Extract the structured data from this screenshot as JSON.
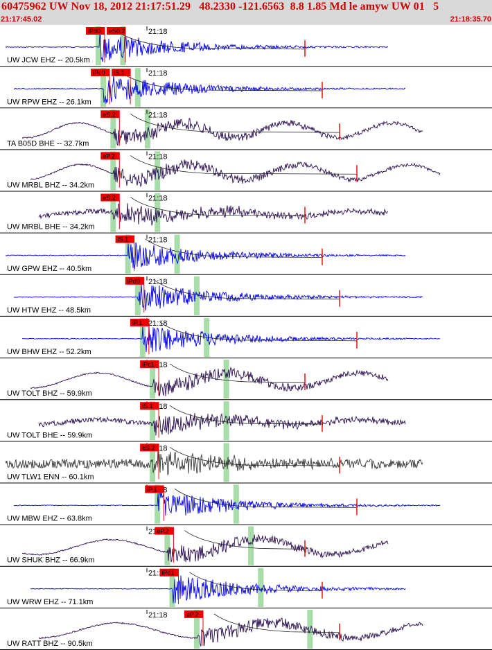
{
  "header": {
    "title": "60475962 UW Nov 18, 2012 21:17:51.29   48.2330 -121.6563  8.8 1.85 Md le amyw UW 01   5",
    "time_start": "21:17:45.02",
    "time_end": "21:18:35.70"
  },
  "colors": {
    "header_bg": "#d9d9d9",
    "header_text": "#cc0000",
    "trace_blue": "#0000ee",
    "trace_dark": "#2a1050",
    "trace_gray": "#3a3a3a",
    "pick_flag": "#ee0000",
    "pick_band": "#a8dca8",
    "separator": "#000000"
  },
  "minute_label": "21:18",
  "traces": [
    {
      "label": "UW JCW EHZ -- 20.5km",
      "color": "trace_blue",
      "kind": "burst",
      "picks": [
        "iPd0",
        "eS0.2"
      ],
      "band_p": 0.2,
      "band_s": 0.25
    },
    {
      "label": "UW RPW EHZ -- 26.1km",
      "color": "trace_blue",
      "kind": "burst",
      "picks": [
        "iPc0",
        "iS.1"
      ],
      "band_p": 0.21,
      "band_s": 0.28
    },
    {
      "label": "TA B05D BHE -- 32.7km",
      "color": "trace_dark",
      "kind": "wave",
      "picks": [
        "eS.2"
      ],
      "band_p": 0.23,
      "band_s": 0.3
    },
    {
      "label": "UW MRBL BHZ -- 34.2km",
      "color": "trace_dark",
      "kind": "wave",
      "picks": [
        "eP.2"
      ],
      "band_p": 0.23,
      "band_s": 0.32
    },
    {
      "label": "UW MRBL BHE -- 34.2km",
      "color": "trace_dark",
      "kind": "noise",
      "picks": [
        "eS.2"
      ],
      "band_p": 0.23,
      "band_s": 0.32
    },
    {
      "label": "UW GPW EHZ -- 40.5km",
      "color": "trace_blue",
      "kind": "burst",
      "picks": [
        "iS.1"
      ],
      "band_p": 0.26,
      "band_s": 0.36
    },
    {
      "label": "UW HTW EHZ -- 48.5km",
      "color": "trace_blue",
      "kind": "burst",
      "picks": [
        "iPd0"
      ],
      "band_p": 0.28,
      "band_s": 0.4
    },
    {
      "label": "UW BHW EHZ -- 52.2km",
      "color": "trace_blue",
      "kind": "burst",
      "picks": [
        "iP.1"
      ],
      "band_p": 0.29,
      "band_s": 0.42
    },
    {
      "label": "UW TOLT BHZ -- 59.9km",
      "color": "trace_dark",
      "kind": "wave",
      "picks": [
        "iPc1"
      ],
      "band_p": 0.31,
      "band_s": 0.46
    },
    {
      "label": "UW TOLT BHE -- 59.9km",
      "color": "trace_dark",
      "kind": "noise",
      "picks": [
        "iS.1"
      ],
      "band_p": 0.31,
      "band_s": 0.46
    },
    {
      "label": "UW TLW1 ENN -- 60.1km",
      "color": "trace_gray",
      "kind": "dense",
      "picks": [
        "eS.2"
      ],
      "band_p": 0.31,
      "band_s": 0.46
    },
    {
      "label": "UW MBW EHZ -- 63.8km",
      "color": "trace_blue",
      "kind": "burst",
      "picks": [
        "iP.1"
      ],
      "band_p": 0.32,
      "band_s": 0.48
    },
    {
      "label": "UW SHUK BHZ -- 66.9km",
      "color": "trace_dark",
      "kind": "wave",
      "picks": [
        "eP.2"
      ],
      "band_p": 0.34,
      "band_s": 0.51
    },
    {
      "label": "UW WRW EHZ -- 71.1km",
      "color": "trace_blue",
      "kind": "burst",
      "picks": [
        "iPd1"
      ],
      "band_p": 0.35,
      "band_s": 0.53
    },
    {
      "label": "UW RATT BHZ -- 90.5km",
      "color": "trace_dark",
      "kind": "wave",
      "picks": [
        "eP.2"
      ],
      "band_p": 0.4,
      "band_s": 0.63
    }
  ]
}
